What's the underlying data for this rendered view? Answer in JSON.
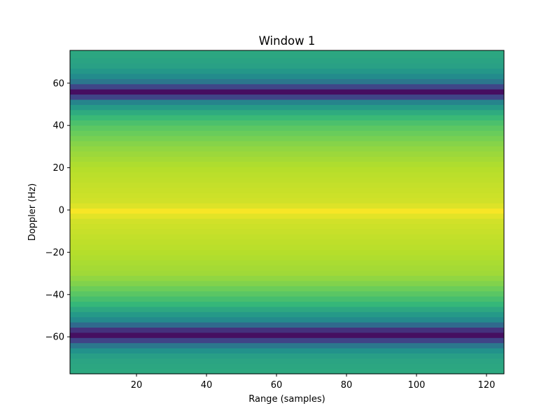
{
  "chart_data": {
    "type": "heatmap",
    "title": "Window 1",
    "xlabel": "Range (samples)",
    "ylabel": "Doppler (Hz)",
    "xlim": [
      1,
      125
    ],
    "ylim": [
      -77.5,
      75.5
    ],
    "x_ticks": [
      20,
      40,
      60,
      80,
      100,
      120
    ],
    "y_ticks": [
      -60,
      -40,
      -20,
      0,
      20,
      40,
      60
    ],
    "x_tick_labels": [
      "20",
      "40",
      "60",
      "80",
      "100",
      "120"
    ],
    "y_tick_labels": [
      "−60",
      "−40",
      "−20",
      "0",
      "20",
      "40",
      "60"
    ],
    "colormap": "viridis",
    "cell_height_hz": 2.45,
    "doppler_profile": [
      {
        "doppler": -76,
        "level": 0.58
      },
      {
        "doppler": -70,
        "level": 0.56
      },
      {
        "doppler": -65,
        "level": 0.48
      },
      {
        "doppler": -62,
        "level": 0.35
      },
      {
        "doppler": -61,
        "level": 0.12
      },
      {
        "doppler": -59,
        "level": 0.05
      },
      {
        "doppler": -57,
        "level": 0.15
      },
      {
        "doppler": -55,
        "level": 0.38
      },
      {
        "doppler": -52,
        "level": 0.48
      },
      {
        "doppler": -48,
        "level": 0.55
      },
      {
        "doppler": -45,
        "level": 0.62
      },
      {
        "doppler": -40,
        "level": 0.7
      },
      {
        "doppler": -35,
        "level": 0.78
      },
      {
        "doppler": -30,
        "level": 0.84
      },
      {
        "doppler": -20,
        "level": 0.88
      },
      {
        "doppler": -10,
        "level": 0.91
      },
      {
        "doppler": -4,
        "level": 0.93
      },
      {
        "doppler": -1,
        "level": 0.99
      },
      {
        "doppler": 0,
        "level": 0.99
      },
      {
        "doppler": 3,
        "level": 0.93
      },
      {
        "doppler": 10,
        "level": 0.91
      },
      {
        "doppler": 20,
        "level": 0.88
      },
      {
        "doppler": 30,
        "level": 0.81
      },
      {
        "doppler": 40,
        "level": 0.7
      },
      {
        "doppler": 45,
        "level": 0.62
      },
      {
        "doppler": 50,
        "level": 0.5
      },
      {
        "doppler": 53,
        "level": 0.42
      },
      {
        "doppler": 54,
        "level": 0.15
      },
      {
        "doppler": 56,
        "level": 0.05
      },
      {
        "doppler": 58,
        "level": 0.14
      },
      {
        "doppler": 59,
        "level": 0.4
      },
      {
        "doppler": 63,
        "level": 0.48
      },
      {
        "doppler": 68,
        "level": 0.55
      },
      {
        "doppler": 75,
        "level": 0.58
      }
    ]
  }
}
